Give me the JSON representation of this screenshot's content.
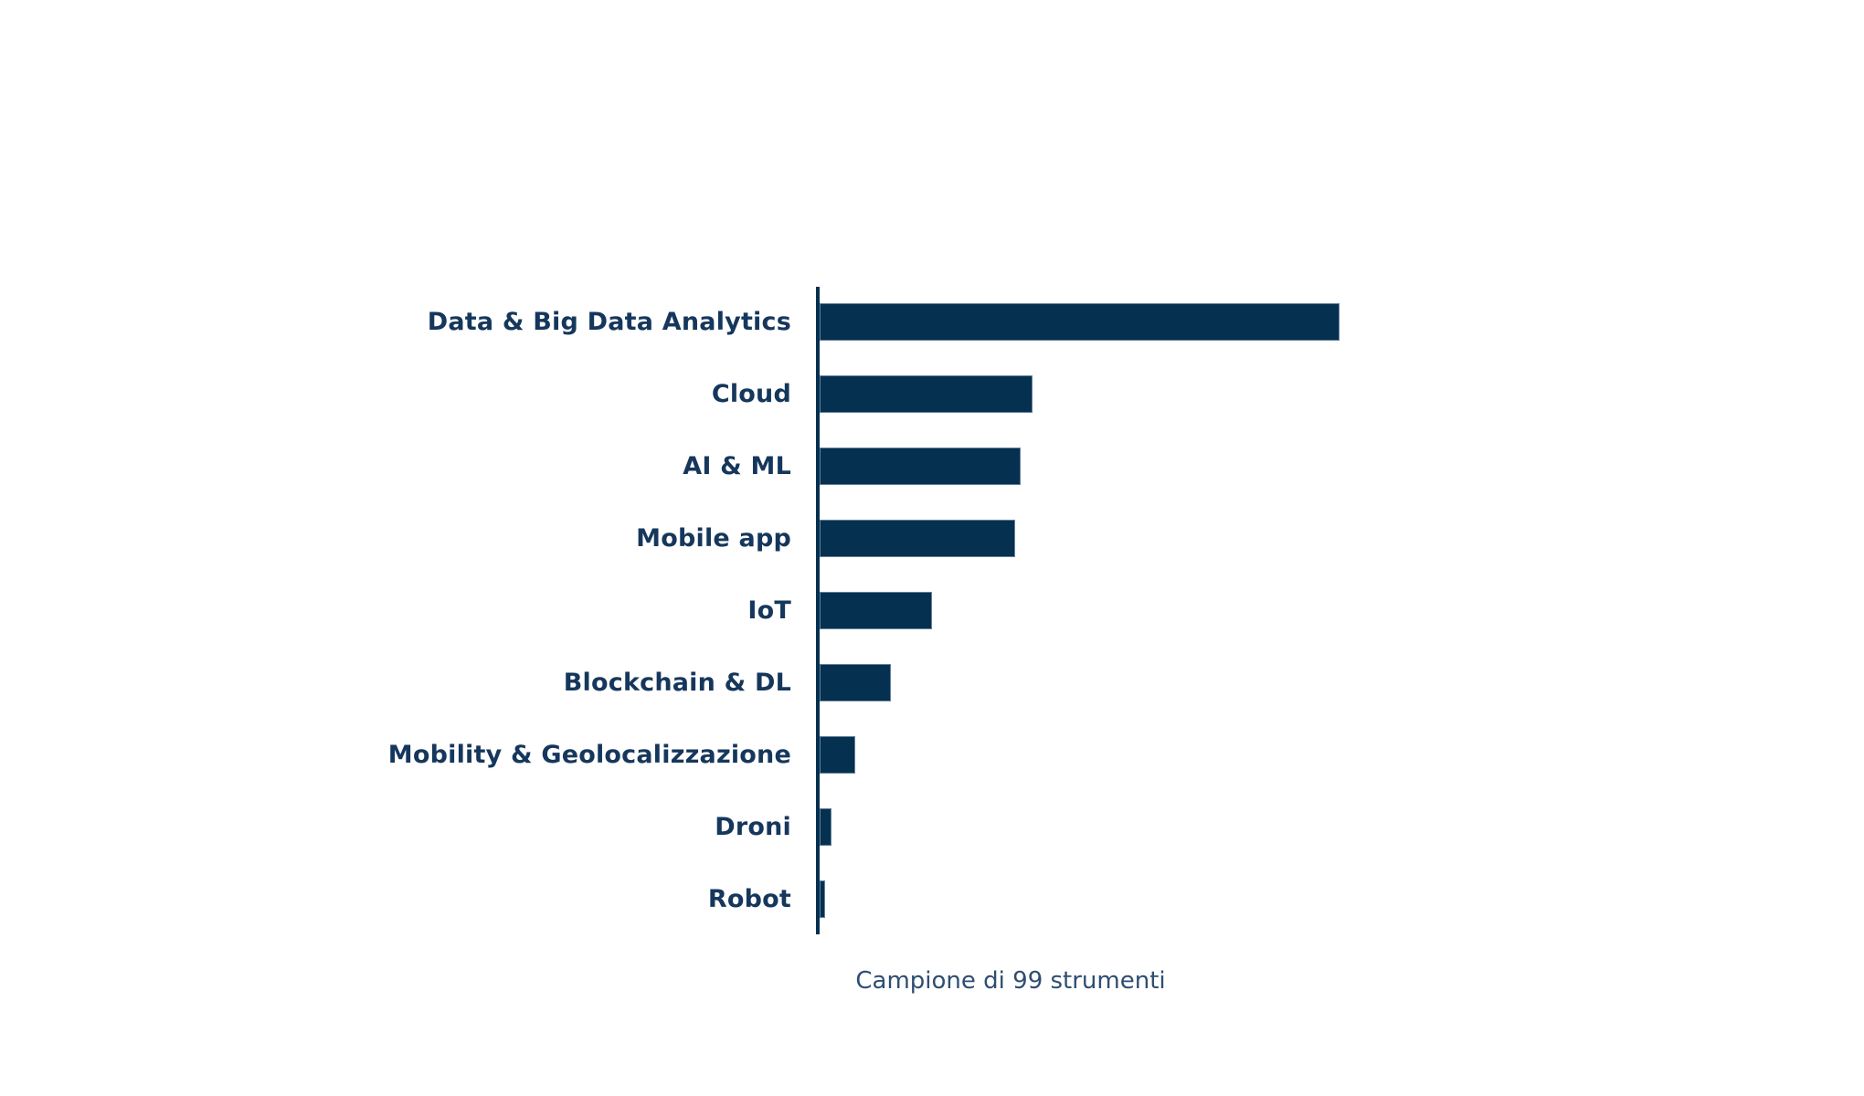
{
  "chart_data": {
    "type": "bar",
    "orientation": "horizontal",
    "title": "",
    "categories": [
      "Data & Big Data Analytics",
      "Cloud",
      "AI & ML",
      "Mobile app",
      "IoT",
      "Blockchain & DL",
      "Mobility & Geolocalizzazione",
      "Droni",
      "Robot"
    ],
    "values": [
      88,
      36,
      34,
      33,
      19,
      12,
      6,
      2,
      1
    ],
    "xlabel": "",
    "ylabel": "",
    "xlim": [
      0,
      88
    ],
    "grid": false,
    "axis_line": true,
    "tick_labels": false,
    "legend": false,
    "caption": "Campione di 99 strumenti",
    "colors": {
      "bar": "#05304f",
      "bar_edge": "#9fb2c4",
      "category_label": "#16375c",
      "caption": "#2e4e71",
      "background": "#ffffff"
    }
  }
}
